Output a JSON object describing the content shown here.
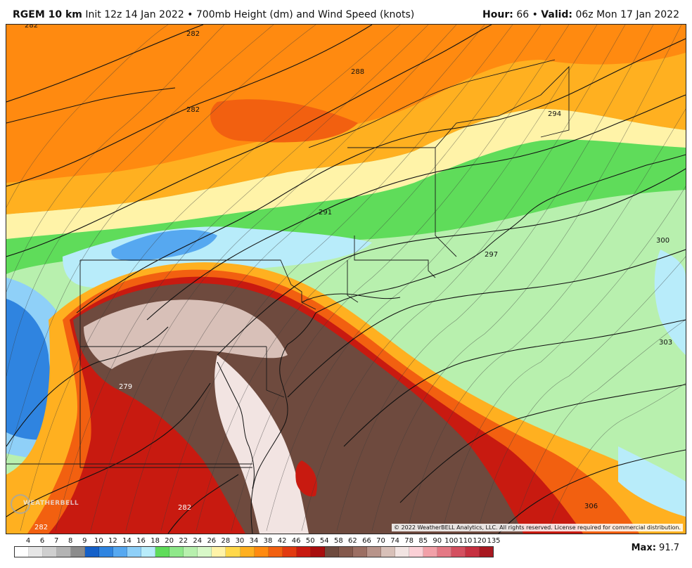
{
  "header": {
    "model": "RGEM 10 km",
    "description": "Init 12z 14 Jan 2022 • 700mb Height (dm) and Wind Speed (knots)",
    "hour_label": "Hour:",
    "hour_value": "66 •",
    "valid_label": "Valid:",
    "valid_value": "06z Mon 17 Jan 2022"
  },
  "map": {
    "contour_labels": [
      "282",
      "282",
      "282",
      "288",
      "291",
      "294",
      "297",
      "300",
      "303",
      "306",
      "279",
      "282",
      "282"
    ],
    "copyright": "© 2022 WeatherBELL Analytics, LLC. All rights reserved. License required for commercial distribution.",
    "logo_text": "WEATHERBELL"
  },
  "scale": {
    "ticks": [
      "4",
      "6",
      "7",
      "8",
      "9",
      "10",
      "12",
      "14",
      "16",
      "18",
      "20",
      "22",
      "24",
      "26",
      "28",
      "30",
      "34",
      "38",
      "42",
      "46",
      "50",
      "54",
      "58",
      "62",
      "66",
      "70",
      "74",
      "78",
      "85",
      "90",
      "100",
      "110",
      "120",
      "135"
    ],
    "colors": [
      "#ffffff",
      "#e6e6e6",
      "#cfcfcf",
      "#b3b3b3",
      "#8c8c8c",
      "#1560c8",
      "#2f84e0",
      "#56a8f0",
      "#8fd0f8",
      "#b8ecfa",
      "#5fdc5a",
      "#8fe88a",
      "#b8f0ae",
      "#d8f8c8",
      "#fff3a8",
      "#ffd84a",
      "#ffb020",
      "#ff8a10",
      "#f26010",
      "#e23a10",
      "#c81a10",
      "#a80e0e",
      "#6e4a3e",
      "#84594c",
      "#9c6f63",
      "#b8948a",
      "#d8c0b8",
      "#f2e4e2",
      "#fbd0d6",
      "#f2a0a8",
      "#e47884",
      "#d45060",
      "#c63040",
      "#a81820"
    ]
  },
  "max": {
    "label": "Max:",
    "value": "91.7"
  }
}
